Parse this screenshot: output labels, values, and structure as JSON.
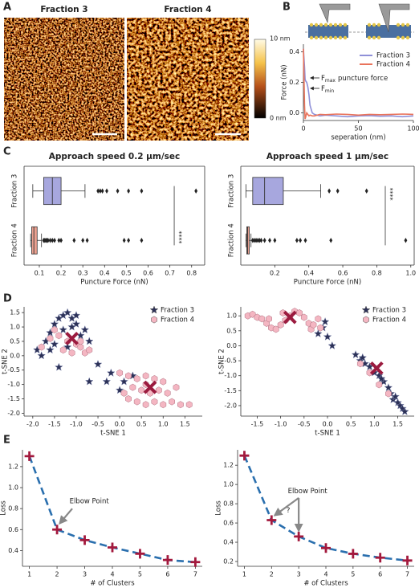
{
  "panel_labels": [
    "A",
    "B",
    "C",
    "D",
    "E"
  ],
  "afm": {
    "titles": [
      "Fraction 3",
      "Fraction 4"
    ],
    "colorbar": [
      "10 nm",
      "0 nm"
    ]
  },
  "chart_data": [
    {
      "type": "line",
      "xlabel": "seperation (nm)",
      "ylabel": "Force (nN)",
      "x": [
        0,
        1,
        1.5,
        2,
        3,
        4,
        5,
        6,
        8,
        10,
        15,
        20,
        30,
        40,
        50,
        60,
        70,
        80,
        90,
        100
      ],
      "series": [
        {
          "name": "Fraction 3",
          "color": "#8f90d8",
          "values": [
            0.42,
            0.3,
            0.22,
            0.21,
            0.2,
            0.17,
            0.12,
            0.05,
            0.0,
            -0.01,
            -0.02,
            -0.015,
            -0.02,
            -0.025,
            -0.02,
            -0.018,
            -0.022,
            -0.02,
            -0.025,
            -0.02
          ]
        },
        {
          "name": "Fraction 4",
          "color": "#e9735b",
          "values": [
            0.42,
            0.05,
            -0.04,
            -0.03,
            0.0,
            -0.01,
            -0.02,
            -0.015,
            -0.02,
            -0.02,
            -0.01,
            -0.012,
            -0.008,
            -0.01,
            -0.015,
            -0.01,
            -0.012,
            -0.01,
            -0.008,
            -0.01
          ]
        }
      ],
      "annotations": [
        {
          "text": "F",
          "sub": "max",
          "after": "puncture force"
        },
        {
          "text": "F",
          "sub": "min"
        }
      ],
      "xlim": [
        0,
        100
      ],
      "xticks": [
        0,
        50,
        100
      ],
      "ylim": [
        -0.05,
        0.45
      ],
      "yticks": [
        {
          "value": 0,
          "label": "0.0"
        },
        0.2,
        0.4
      ]
    },
    {
      "type": "box",
      "title": "Approach speed 0.2 µm/sec",
      "xlabel": "Puncture Force (nN)",
      "categories": [
        "Fraction 3",
        "Fraction 4"
      ],
      "boxes": [
        {
          "color": "#a7a7de",
          "whislo": 0.07,
          "q1": 0.12,
          "med": 0.16,
          "q3": 0.2,
          "whishi": 0.31,
          "fliers": [
            0.37,
            0.38,
            0.39,
            0.41,
            0.46,
            0.51,
            0.57,
            0.82
          ]
        },
        {
          "color": "#eba191",
          "whislo": 0.06,
          "q1": 0.065,
          "med": 0.075,
          "q3": 0.09,
          "whishi": 0.11,
          "fliers": [
            0.12,
            0.125,
            0.13,
            0.135,
            0.14,
            0.15,
            0.16,
            0.17,
            0.19,
            0.2,
            0.26,
            0.3,
            0.32,
            0.49,
            0.51,
            0.57
          ]
        }
      ],
      "annotations": [
        "****"
      ],
      "xlim": [
        0.03,
        0.86
      ],
      "xticks": [
        0.1,
        0.2,
        0.3,
        0.4,
        0.5,
        0.6,
        0.7,
        0.8
      ]
    },
    {
      "type": "box",
      "title": "Approach speed 1 µm/sec",
      "xlabel": "Puncture Force (nN)",
      "categories": [
        "Fraction 3",
        "Fraction 4"
      ],
      "boxes": [
        {
          "color": "#a7a7de",
          "whislo": 0.03,
          "q1": 0.07,
          "med": 0.14,
          "q3": 0.25,
          "whishi": 0.47,
          "fliers": [
            0.52,
            0.57,
            0.74
          ]
        },
        {
          "color": "#eba191",
          "whislo": 0.03,
          "q1": 0.035,
          "med": 0.04,
          "q3": 0.05,
          "whishi": 0.06,
          "fliers": [
            0.07,
            0.08,
            0.09,
            0.1,
            0.11,
            0.12,
            0.14,
            0.17,
            0.2,
            0.33,
            0.35,
            0.38,
            0.53,
            0.97
          ]
        }
      ],
      "annotations": [
        "****"
      ],
      "xlim": [
        0.0,
        1.02
      ],
      "xticks": [
        0.2,
        0.4,
        0.6,
        0.8,
        {
          "value": 1,
          "label": "1.0"
        }
      ]
    },
    {
      "type": "scatter",
      "xlabel": "t-SNE 1",
      "ylabel": "t-SNE 2",
      "series": [
        {
          "name": "Fraction 3",
          "color": "#2c3157",
          "marker": "star",
          "x": [
            -1.9,
            -1.7,
            -1.6,
            -1.5,
            -1.4,
            -1.3,
            -1.2,
            -1.1,
            -1.0,
            -1.3,
            -1.5,
            -1.2,
            -0.9,
            -0.8,
            -0.7,
            -1.6,
            -1.8,
            -0.5,
            -0.3,
            -0.2,
            -0.7,
            0.1,
            0.3,
            0.0,
            -1.4,
            -1.1,
            -1.0
          ],
          "y": [
            0.2,
            0.5,
            0.8,
            1.1,
            1.3,
            1.4,
            1.5,
            1.3,
            1.1,
            0.9,
            0.4,
            0.3,
            0.7,
            0.9,
            0.5,
            0.2,
            0.0,
            -0.3,
            -0.9,
            -0.6,
            -0.9,
            -0.9,
            -0.7,
            -1.2,
            -0.4,
            1.0,
            1.4
          ]
        },
        {
          "name": "Fraction 4",
          "color": "#f4b6c2",
          "marker": "hexagon",
          "x": [
            -1.8,
            -1.6,
            -1.4,
            -1.2,
            -1.0,
            -0.9,
            -1.1,
            -0.8,
            -0.7,
            -1.3,
            -1.5,
            -0.9,
            0.0,
            0.2,
            0.4,
            0.6,
            0.8,
            1.0,
            0.3,
            0.5,
            0.7,
            0.9,
            1.1,
            0.2,
            0.4,
            0.6,
            0.8,
            1.0,
            1.2,
            1.4,
            1.6,
            0.1,
            0.6,
            1.3
          ],
          "y": [
            0.3,
            0.6,
            0.7,
            0.5,
            0.4,
            0.3,
            0.1,
            0.1,
            0.2,
            0.2,
            0.9,
            0.5,
            -0.6,
            -0.7,
            -0.8,
            -0.7,
            -0.8,
            -0.9,
            -1.1,
            -1.2,
            -1.3,
            -1.2,
            -1.3,
            -1.5,
            -1.6,
            -1.7,
            -1.6,
            -1.7,
            -1.6,
            -1.7,
            -1.7,
            -1.3,
            -1.0,
            -1.1
          ]
        }
      ],
      "centroids": {
        "color": "#9b1b3f",
        "x": [
          -1.1,
          0.7
        ],
        "y": [
          0.6,
          -1.1
        ]
      },
      "xlim": [
        -2.2,
        1.9
      ],
      "xticks": [
        {
          "value": -2,
          "label": "-2.0"
        },
        -1.5,
        {
          "value": -1,
          "label": "-1.0"
        },
        -0.5,
        {
          "value": 0,
          "label": "0.0"
        },
        0.5,
        {
          "value": 1,
          "label": "1.0"
        },
        1.5
      ],
      "ylim": [
        -2.1,
        1.7
      ],
      "yticks": [
        {
          "value": -2,
          "label": "-2.0"
        },
        -1.5,
        {
          "value": -1,
          "label": "-1.0"
        },
        -0.5,
        {
          "value": 0,
          "label": "0.0"
        },
        0.5,
        {
          "value": 1,
          "label": "1.0"
        },
        1.5
      ]
    },
    {
      "type": "scatter",
      "xlabel": "t-SNE 1",
      "ylabel": "t-SNE 2",
      "series": [
        {
          "name": "Fraction 3",
          "color": "#2c3157",
          "marker": "star",
          "x": [
            0.6,
            0.7,
            0.8,
            0.9,
            1.0,
            1.1,
            1.2,
            1.3,
            1.35,
            1.4,
            1.5,
            1.55,
            1.6,
            1.65,
            0.75,
            1.15,
            1.45,
            -0.1,
            -0.2,
            -0.05,
            0.1,
            0.0
          ],
          "y": [
            -0.3,
            -0.5,
            -0.6,
            -0.7,
            -0.9,
            -1.0,
            -1.2,
            -1.4,
            -1.6,
            -1.8,
            -1.9,
            -2.0,
            -2.1,
            -2.2,
            -0.4,
            -1.1,
            -1.7,
            0.6,
            0.4,
            0.8,
            0.0,
            0.3
          ]
        },
        {
          "name": "Fraction 4",
          "color": "#f4b6c2",
          "marker": "hexagon",
          "x": [
            -1.7,
            -1.6,
            -1.5,
            -1.4,
            -1.3,
            -1.2,
            -1.1,
            -1.0,
            -0.9,
            -0.8,
            -0.7,
            -0.6,
            -0.5,
            -0.4,
            -0.35,
            -0.3,
            -0.2,
            -0.15,
            -1.25,
            -0.95,
            0.7,
            0.9,
            1.1,
            1.3
          ],
          "y": [
            1.0,
            1.05,
            0.95,
            0.9,
            0.75,
            0.6,
            0.55,
            0.7,
            0.85,
            1.0,
            1.15,
            1.1,
            0.95,
            0.75,
            0.55,
            0.7,
            0.9,
            0.6,
            0.9,
            1.1,
            -0.6,
            -0.9,
            -1.3,
            -1.6
          ]
        }
      ],
      "centroids": {
        "color": "#9b1b3f",
        "x": [
          1.05,
          -0.8
        ],
        "y": [
          -0.75,
          0.95
        ]
      },
      "xlim": [
        -1.85,
        1.85
      ],
      "xticks": [
        -1.5,
        {
          "value": -1,
          "label": "-1.0"
        },
        -0.5,
        {
          "value": 0,
          "label": "0.0"
        },
        0.5,
        {
          "value": 1,
          "label": "1.0"
        },
        1.5
      ],
      "ylim": [
        -2.35,
        1.3
      ],
      "yticks": [
        {
          "value": -2,
          "label": "-2.0"
        },
        -1.5,
        {
          "value": -1,
          "label": "-1.0"
        },
        -0.5,
        {
          "value": 0,
          "label": "0.0"
        },
        0.5,
        {
          "value": 1,
          "label": "1.0"
        }
      ]
    },
    {
      "type": "line",
      "xlabel": "# of Clusters",
      "ylabel": "Loss",
      "x": [
        1,
        2,
        3,
        4,
        5,
        6,
        7
      ],
      "values": [
        1.3,
        0.6,
        0.5,
        0.43,
        0.37,
        0.31,
        0.29
      ],
      "color": "#2a6fae",
      "marker_color": "#a3193d",
      "line_style": "dashed",
      "marker": "plus",
      "annotations": [
        "Elbow Point"
      ],
      "xlim": [
        0.75,
        7.25
      ],
      "xticks": [
        1,
        2,
        3,
        4,
        5,
        6,
        7
      ],
      "ylim": [
        0.25,
        1.36
      ],
      "yticks": [
        0.4,
        0.6,
        0.8,
        {
          "value": 1,
          "label": "1.0"
        },
        1.2
      ]
    },
    {
      "type": "line",
      "xlabel": "# of Clusters",
      "ylabel": "Loss",
      "x": [
        1,
        2,
        3,
        4,
        5,
        6,
        7
      ],
      "values": [
        1.3,
        0.63,
        0.46,
        0.34,
        0.28,
        0.24,
        0.21
      ],
      "color": "#2a6fae",
      "marker_color": "#a3193d",
      "line_style": "dashed",
      "marker": "plus",
      "annotations": [
        "Elbow Point",
        "?"
      ],
      "xlim": [
        0.75,
        7.25
      ],
      "xticks": [
        1,
        2,
        3,
        4,
        5,
        6,
        7
      ],
      "ylim": [
        0.15,
        1.36
      ],
      "yticks": [
        0.2,
        0.4,
        0.6,
        0.8,
        {
          "value": 1,
          "label": "1.0"
        },
        1.2
      ]
    }
  ]
}
